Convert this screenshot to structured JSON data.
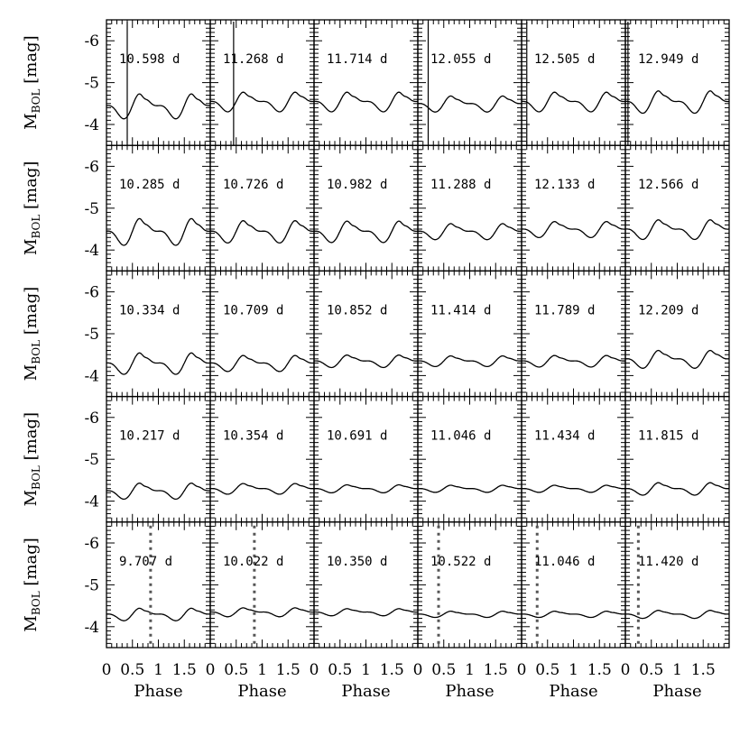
{
  "chart_data": {
    "type": "line",
    "layout": "grid of 5 rows x 6 columns of small-multiple light curves",
    "xlabel": "Phase",
    "ylabel_main": "M",
    "ylabel_sub": "BOL",
    "ylabel_unit": "[mag]",
    "xlim": [
      0,
      2
    ],
    "ylim": [
      -3.5,
      -6.5
    ],
    "y_inverted": true,
    "x_tick_labels": [
      "0",
      "0.5",
      "1",
      "1.5"
    ],
    "y_tick_labels": [
      "-6",
      "-5",
      "-4"
    ],
    "y_tick_values": [
      -6,
      -5,
      -4
    ],
    "grid": false,
    "panels": [
      [
        {
          "period_label": "10.598 d",
          "mean": -4.45,
          "amp": 0.28,
          "marker": {
            "style": "solid",
            "phase": 0.4
          }
        },
        {
          "period_label": "11.268 d",
          "mean": -4.55,
          "amp": 0.22,
          "marker": {
            "style": "solid",
            "phase": 0.45
          }
        },
        {
          "period_label": "11.714 d",
          "mean": -4.55,
          "amp": 0.22,
          "marker": null
        },
        {
          "period_label": "12.055 d",
          "mean": -4.5,
          "amp": 0.18,
          "marker": {
            "style": "solid",
            "phase": 0.2
          }
        },
        {
          "period_label": "12.505 d",
          "mean": -4.55,
          "amp": 0.22,
          "marker": {
            "style": "solid",
            "phase": 0.1
          }
        },
        {
          "period_label": "12.949 d",
          "mean": -4.55,
          "amp": 0.25,
          "marker": {
            "style": "solid",
            "phase": 0.05
          }
        }
      ],
      [
        {
          "period_label": "10.285 d",
          "mean": -4.45,
          "amp": 0.3,
          "marker": null
        },
        {
          "period_label": "10.726 d",
          "mean": -4.45,
          "amp": 0.25,
          "marker": null
        },
        {
          "period_label": "10.982 d",
          "mean": -4.45,
          "amp": 0.24,
          "marker": null
        },
        {
          "period_label": "11.288 d",
          "mean": -4.45,
          "amp": 0.18,
          "marker": null
        },
        {
          "period_label": "12.133 d",
          "mean": -4.5,
          "amp": 0.18,
          "marker": null
        },
        {
          "period_label": "12.566 d",
          "mean": -4.5,
          "amp": 0.22,
          "marker": null
        }
      ],
      [
        {
          "period_label": "10.334 d",
          "mean": -4.3,
          "amp": 0.24,
          "marker": null
        },
        {
          "period_label": "10.709 d",
          "mean": -4.3,
          "amp": 0.18,
          "marker": null
        },
        {
          "period_label": "10.852 d",
          "mean": -4.35,
          "amp": 0.14,
          "marker": null
        },
        {
          "period_label": "11.414 d",
          "mean": -4.35,
          "amp": 0.12,
          "marker": null
        },
        {
          "period_label": "11.789 d",
          "mean": -4.35,
          "amp": 0.13,
          "marker": null
        },
        {
          "period_label": "12.209 d",
          "mean": -4.4,
          "amp": 0.2,
          "marker": null
        }
      ],
      [
        {
          "period_label": "10.217 d",
          "mean": -4.25,
          "amp": 0.18,
          "marker": null
        },
        {
          "period_label": "10.354 d",
          "mean": -4.3,
          "amp": 0.12,
          "marker": null
        },
        {
          "period_label": "10.691 d",
          "mean": -4.3,
          "amp": 0.09,
          "marker": null
        },
        {
          "period_label": "11.046 d",
          "mean": -4.3,
          "amp": 0.08,
          "marker": null
        },
        {
          "period_label": "11.434 d",
          "mean": -4.3,
          "amp": 0.08,
          "marker": null
        },
        {
          "period_label": "11.815 d",
          "mean": -4.3,
          "amp": 0.14,
          "marker": null
        }
      ],
      [
        {
          "period_label": "9.707 d",
          "mean": -4.3,
          "amp": 0.14,
          "marker": {
            "style": "dotted",
            "phase": 0.85
          }
        },
        {
          "period_label": "10.022 d",
          "mean": -4.35,
          "amp": 0.1,
          "marker": {
            "style": "dotted",
            "phase": 0.85
          }
        },
        {
          "period_label": "10.350 d",
          "mean": -4.35,
          "amp": 0.08,
          "marker": null
        },
        {
          "period_label": "10.522 d",
          "mean": -4.3,
          "amp": 0.07,
          "marker": {
            "style": "dotted",
            "phase": 0.4
          }
        },
        {
          "period_label": "11.046 d",
          "mean": -4.3,
          "amp": 0.07,
          "marker": {
            "style": "dotted",
            "phase": 0.3
          }
        },
        {
          "period_label": "11.420 d",
          "mean": -4.3,
          "amp": 0.09,
          "marker": {
            "style": "dotted",
            "phase": 0.25
          }
        }
      ]
    ]
  }
}
